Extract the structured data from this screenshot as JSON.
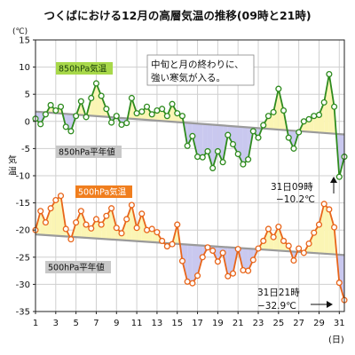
{
  "chart_data": {
    "type": "line",
    "title": "つくばにおける12月の高層気温の推移(09時と21時)",
    "ylabel": "気温",
    "yunit": "(℃)",
    "xunit": "(日)",
    "ylim": [
      -35,
      15
    ],
    "yticks": [
      15,
      10,
      5,
      0,
      -5,
      -10,
      -15,
      -20,
      -25,
      -30,
      -35
    ],
    "xlim": [
      1,
      31.5
    ],
    "xticks": [
      1,
      3,
      5,
      7,
      9,
      11,
      13,
      15,
      17,
      19,
      21,
      23,
      25,
      27,
      29,
      31
    ],
    "grid": true,
    "colors": {
      "s850_line": "#2e8b1e",
      "s850_marker_fill": "#ffffff",
      "s850_label_bg": "#a8d84a",
      "s500_line": "#e8651a",
      "s500_marker_fill": "#ffffff",
      "s500_label_bg": "#f07e1e",
      "warm_fill": "#fbf5b4",
      "cold_fill": "#c9c8ef",
      "normal_line": "#9a9a9a",
      "normal_label_bg": "#c8c8c8"
    },
    "series": [
      {
        "name": "850hPa気温",
        "x": [
          1,
          1.5,
          2,
          2.5,
          3,
          3.5,
          4,
          4.5,
          5,
          5.5,
          6,
          6.5,
          7,
          7.5,
          8,
          8.5,
          9,
          9.5,
          10,
          10.5,
          11,
          11.5,
          12,
          12.5,
          13,
          13.5,
          14,
          14.5,
          15,
          15.5,
          16,
          16.5,
          17,
          17.5,
          18,
          18.5,
          19,
          19.5,
          20,
          20.5,
          21,
          21.5,
          22,
          22.5,
          23,
          23.5,
          24,
          24.5,
          25,
          25.5,
          26,
          26.5,
          27,
          27.5,
          28,
          28.5,
          29,
          29.5,
          30,
          30.5,
          31,
          31.5
        ],
        "values": [
          0.5,
          -0.5,
          1.3,
          3.0,
          2.0,
          2.7,
          -1.0,
          -1.8,
          1.0,
          3.7,
          0.8,
          4.3,
          7.0,
          4.7,
          2.3,
          -0.2,
          1.0,
          -0.6,
          -0.3,
          4.3,
          1.5,
          1.8,
          2.7,
          1.3,
          2.0,
          2.3,
          1.0,
          3.2,
          1.5,
          1.0,
          -4.5,
          -2.7,
          -6.5,
          -6.6,
          -5.5,
          -8.6,
          -5.5,
          -7.5,
          -2.5,
          -4.2,
          -6.0,
          -7.9,
          -7.0,
          -1.8,
          -3.0,
          -0.7,
          1.0,
          1.7,
          6.0,
          2.0,
          -3.0,
          -5.0,
          -2.0,
          0.0,
          0.4,
          1.0,
          1.2,
          3.5,
          8.7,
          2.7,
          -10.2,
          -6.5
        ]
      },
      {
        "name": "850hPa平年値",
        "x": [
          1,
          31.5
        ],
        "values": [
          1.8,
          -2.4
        ]
      },
      {
        "name": "500hPa気温",
        "x": [
          1,
          1.5,
          2,
          2.5,
          3,
          3.5,
          4,
          4.5,
          5,
          5.5,
          6,
          6.5,
          7,
          7.5,
          8,
          8.5,
          9,
          9.5,
          10,
          10.5,
          11,
          11.5,
          12,
          12.5,
          13,
          13.5,
          14,
          14.5,
          15,
          15.5,
          16,
          16.5,
          17,
          17.5,
          18,
          18.5,
          19,
          19.5,
          20,
          20.5,
          21,
          21.5,
          22,
          22.5,
          23,
          23.5,
          24,
          24.5,
          25,
          25.5,
          26,
          26.5,
          27,
          27.5,
          28,
          28.5,
          29,
          29.5,
          30,
          30.5,
          31,
          31.5
        ],
        "values": [
          -20.0,
          -16.5,
          -18.6,
          -16.0,
          -14.5,
          -13.7,
          -19.8,
          -21.7,
          -18.6,
          -16.5,
          -19.0,
          -19.7,
          -18.0,
          -19.0,
          -17.4,
          -16.0,
          -19.6,
          -20.6,
          -18.0,
          -15.4,
          -19.6,
          -17.0,
          -20.0,
          -19.8,
          -20.4,
          -22.0,
          -23.0,
          -22.6,
          -19.0,
          -25.7,
          -29.5,
          -29.8,
          -28.4,
          -25.0,
          -23.2,
          -23.8,
          -25.8,
          -24.2,
          -28.5,
          -28.0,
          -23.5,
          -27.4,
          -27.5,
          -25.5,
          -23.4,
          -22.0,
          -19.8,
          -21.3,
          -19.4,
          -22.0,
          -22.9,
          -25.6,
          -23.4,
          -24.2,
          -22.5,
          -20.5,
          -19.0,
          -15.2,
          -16.2,
          -19.5,
          -29.7,
          -32.9
        ]
      },
      {
        "name": "500hPa平年値",
        "x": [
          1,
          31.5
        ],
        "values": [
          -20.8,
          -24.6
        ]
      }
    ],
    "labels": {
      "s850": "850hPa気温",
      "s850_normal": "850hPa平年値",
      "s500": "500hPa気温",
      "s500_normal": "500hPa平年値"
    },
    "annotations": {
      "box_line1": "中旬と月の終わりに、",
      "box_line2": "強い寒気が入る。",
      "a1_line1": "31日09時",
      "a1_line2": "−10.2℃",
      "a2_line1": "31日21時",
      "a2_line2": "−32.9℃"
    }
  }
}
